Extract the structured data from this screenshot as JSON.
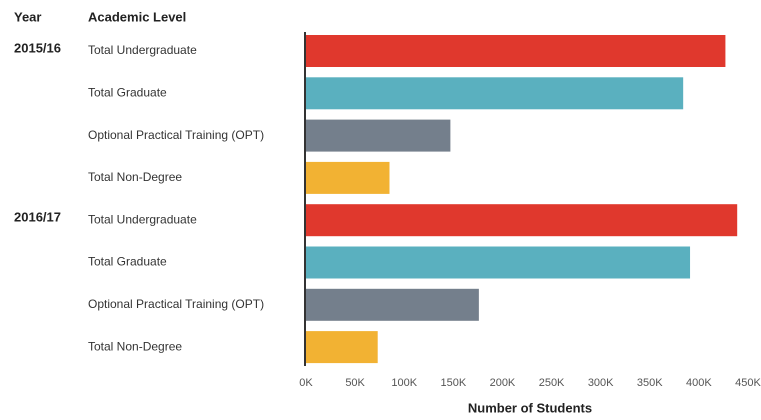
{
  "chart_data": {
    "type": "bar",
    "headers": [
      "Year",
      "Academic Level"
    ],
    "groups": [
      {
        "year": "2015/16",
        "categories": [
          "Total Undergraduate",
          "Total Graduate",
          "Optional Practical Training (OPT)",
          "Total Non-Degree"
        ],
        "values": [
          427000,
          384000,
          147000,
          85000
        ]
      },
      {
        "year": "2016/17",
        "categories": [
          "Total Undergraduate",
          "Total Graduate",
          "Optional Practical Training (OPT)",
          "Total Non-Degree"
        ],
        "values": [
          439000,
          391000,
          176000,
          73000
        ]
      }
    ],
    "colors": [
      "#e0382d",
      "#5ab0bf",
      "#747f8c",
      "#f2b233"
    ],
    "xlim": [
      0,
      450000
    ],
    "xticks": [
      {
        "value": 0,
        "label": "0K"
      },
      {
        "value": 50000,
        "label": "50K"
      },
      {
        "value": 100000,
        "label": "100K"
      },
      {
        "value": 150000,
        "label": "150K"
      },
      {
        "value": 200000,
        "label": "200K"
      },
      {
        "value": 250000,
        "label": "250K"
      },
      {
        "value": 300000,
        "label": "300K"
      },
      {
        "value": 350000,
        "label": "350K"
      },
      {
        "value": 400000,
        "label": "400K"
      },
      {
        "value": 450000,
        "label": "450K"
      }
    ],
    "xlabel": "Number of Students"
  }
}
